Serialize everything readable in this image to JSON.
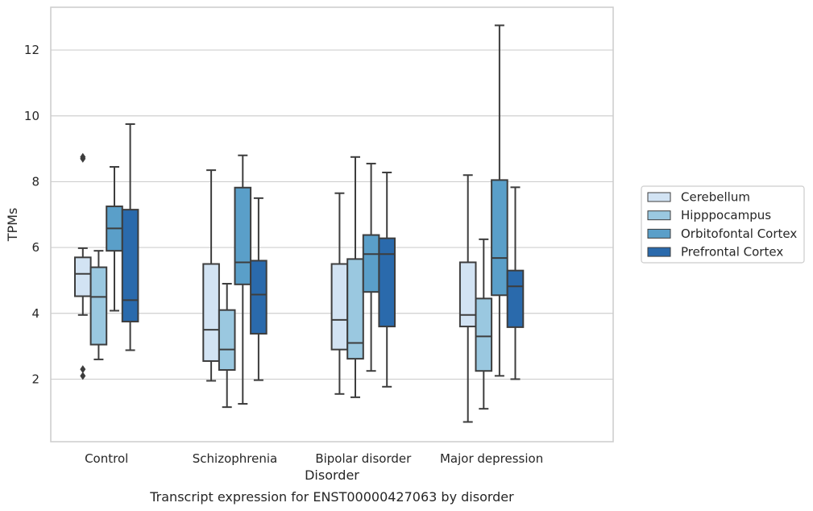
{
  "chart_data": {
    "type": "box",
    "title": "",
    "caption": "Transcript expression for ENST00000427063 by disorder",
    "xlabel": "Disorder",
    "ylabel": "TPMs",
    "ylim": [
      0.1,
      13.3
    ],
    "yticks": [
      2,
      4,
      6,
      8,
      10,
      12
    ],
    "grid": true,
    "legend_position": "right",
    "categories": [
      "Control",
      "Schizophrenia",
      "Bipolar disorder",
      "Major depression"
    ],
    "series": [
      {
        "name": "Cerebellum",
        "color": "#d2e3f3",
        "boxes": [
          {
            "whislo": 3.95,
            "q1": 4.52,
            "med": 5.2,
            "q3": 5.7,
            "whishi": 5.98,
            "fliers": [
              8.7,
              8.75,
              2.1,
              2.3
            ]
          },
          {
            "whislo": 1.95,
            "q1": 2.55,
            "med": 3.5,
            "q3": 5.5,
            "whishi": 8.35,
            "fliers": []
          },
          {
            "whislo": 1.55,
            "q1": 2.9,
            "med": 3.8,
            "q3": 5.5,
            "whishi": 7.65,
            "fliers": []
          },
          {
            "whislo": 0.7,
            "q1": 3.6,
            "med": 3.95,
            "q3": 5.55,
            "whishi": 8.2,
            "fliers": []
          }
        ]
      },
      {
        "name": "Hipppocampus",
        "color": "#9ac8e0",
        "boxes": [
          {
            "whislo": 2.6,
            "q1": 3.05,
            "med": 4.5,
            "q3": 5.4,
            "whishi": 5.9,
            "fliers": []
          },
          {
            "whislo": 1.15,
            "q1": 2.28,
            "med": 2.9,
            "q3": 4.1,
            "whishi": 4.9,
            "fliers": []
          },
          {
            "whislo": 1.45,
            "q1": 2.62,
            "med": 3.1,
            "q3": 5.65,
            "whishi": 8.75,
            "fliers": []
          },
          {
            "whislo": 1.1,
            "q1": 2.25,
            "med": 3.3,
            "q3": 4.45,
            "whishi": 6.25,
            "fliers": []
          }
        ]
      },
      {
        "name": "Orbitofontal Cortex",
        "color": "#5a9fc9",
        "boxes": [
          {
            "whislo": 4.08,
            "q1": 5.9,
            "med": 6.58,
            "q3": 7.25,
            "whishi": 8.45,
            "fliers": []
          },
          {
            "whislo": 1.25,
            "q1": 4.88,
            "med": 5.55,
            "q3": 7.82,
            "whishi": 8.8,
            "fliers": []
          },
          {
            "whislo": 2.25,
            "q1": 4.65,
            "med": 5.8,
            "q3": 6.38,
            "whishi": 8.55,
            "fliers": []
          },
          {
            "whislo": 2.1,
            "q1": 4.55,
            "med": 5.68,
            "q3": 8.05,
            "whishi": 12.75,
            "fliers": []
          }
        ]
      },
      {
        "name": "Prefrontal Cortex",
        "color": "#2a6aac",
        "boxes": [
          {
            "whislo": 2.88,
            "q1": 3.75,
            "med": 4.4,
            "q3": 7.15,
            "whishi": 9.75,
            "fliers": []
          },
          {
            "whislo": 1.97,
            "q1": 3.38,
            "med": 4.57,
            "q3": 5.6,
            "whishi": 7.5,
            "fliers": []
          },
          {
            "whislo": 1.77,
            "q1": 3.6,
            "med": 5.8,
            "q3": 6.28,
            "whishi": 8.28,
            "fliers": []
          },
          {
            "whislo": 2.0,
            "q1": 3.58,
            "med": 4.82,
            "q3": 5.3,
            "whishi": 7.83,
            "fliers": []
          }
        ]
      }
    ]
  }
}
